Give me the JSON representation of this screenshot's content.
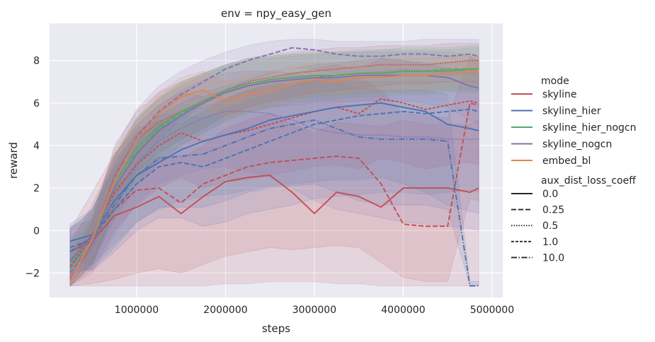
{
  "chart_data": {
    "type": "line",
    "title": "env = npy_easy_gen",
    "xlabel": "steps",
    "ylabel": "reward",
    "xlim": [
      20000,
      5120000
    ],
    "ylim": [
      -3.15,
      9.75
    ],
    "x_ticks": [
      1000000,
      2000000,
      3000000,
      4000000,
      5000000
    ],
    "x_tick_labels": [
      "1000000",
      "2000000",
      "3000000",
      "4000000",
      "5000000"
    ],
    "y_ticks": [
      -2,
      0,
      2,
      4,
      6,
      8
    ],
    "y_tick_labels": [
      "−2",
      "0",
      "2",
      "4",
      "6",
      "8"
    ],
    "grid": true,
    "background": "#eaeaf2",
    "legend_placement": "right, outside plot",
    "legend": {
      "hue_title": "mode",
      "hue_entries": [
        {
          "label": "skyline",
          "color": "#c44e52"
        },
        {
          "label": "skyline_hier",
          "color": "#4c72b0"
        },
        {
          "label": "skyline_hier_nogcn",
          "color": "#55a868"
        },
        {
          "label": "skyline_nogcn",
          "color": "#8172b3"
        },
        {
          "label": "embed_bl",
          "color": "#dd8452"
        }
      ],
      "style_title": "aux_dist_loss_coeff",
      "style_entries": [
        {
          "label": "0.0",
          "dash": "solid"
        },
        {
          "label": "0.25",
          "dash": "dashed"
        },
        {
          "label": "0.5",
          "dash": "dotted"
        },
        {
          "label": "1.0",
          "dash": "densely-dashed"
        },
        {
          "label": "10.0",
          "dash": "dashdot"
        }
      ]
    },
    "x": [
      250000,
      500000,
      750000,
      1000000,
      1250000,
      1500000,
      1750000,
      2000000,
      2250000,
      2500000,
      2750000,
      3000000,
      3250000,
      3500000,
      3750000,
      4000000,
      4250000,
      4500000,
      4750000,
      4850000
    ],
    "series": [
      {
        "color": "#c44e52",
        "dash": "solid",
        "values": [
          -1.0,
          -0.5,
          0.7,
          1.1,
          1.6,
          0.8,
          1.6,
          2.3,
          2.5,
          2.6,
          1.8,
          0.8,
          1.8,
          1.6,
          1.1,
          2.0,
          2.0,
          2.0,
          1.8,
          2.0
        ],
        "lower": [
          -2.6,
          -2.6,
          -2.6,
          -2.6,
          -2.6,
          -2.6,
          -2.6,
          -2.5,
          -2.5,
          -2.4,
          -2.4,
          -2.4,
          -2.5,
          -2.5,
          -2.6,
          -2.6,
          -2.6,
          -2.6,
          -2.6,
          -2.6
        ],
        "upper": [
          0.2,
          0.5,
          2.0,
          3.0,
          3.5,
          3.4,
          4.0,
          4.8,
          5.2,
          5.5,
          5.0,
          4.6,
          5.1,
          5.0,
          4.9,
          5.2,
          5.0,
          5.0,
          5.0,
          5.2
        ]
      },
      {
        "color": "#c44e52",
        "dash": "dashed",
        "values": [
          -1.5,
          -0.2,
          1.0,
          1.9,
          2.0,
          1.3,
          2.2,
          2.6,
          3.0,
          3.2,
          3.3,
          3.4,
          3.5,
          3.4,
          2.2,
          0.3,
          0.2,
          0.2,
          6.0,
          5.9
        ],
        "lower": [
          -2.6,
          -2.5,
          -2.3,
          -2.0,
          -1.8,
          -2.0,
          -1.6,
          -1.2,
          -1.0,
          -0.8,
          -0.9,
          -0.8,
          -0.7,
          -0.8,
          -1.5,
          -2.2,
          -2.4,
          -2.4,
          1.5,
          1.4
        ],
        "upper": [
          0.0,
          1.8,
          3.6,
          4.8,
          5.2,
          5.0,
          5.6,
          6.2,
          6.6,
          6.8,
          6.9,
          7.0,
          7.2,
          7.2,
          6.6,
          5.5,
          5.4,
          5.3,
          8.2,
          8.0
        ]
      },
      {
        "color": "#c44e52",
        "dash": "dotted",
        "values": [
          -2.3,
          -0.6,
          2.6,
          4.3,
          5.1,
          5.6,
          6.0,
          6.6,
          7.0,
          7.2,
          7.4,
          7.5,
          7.6,
          7.7,
          7.8,
          7.8,
          7.8,
          7.9,
          8.0,
          8.0
        ],
        "lower": [
          -2.6,
          -1.6,
          1.0,
          2.8,
          3.7,
          4.3,
          4.8,
          5.4,
          5.8,
          6.1,
          6.3,
          6.5,
          6.6,
          6.7,
          6.8,
          6.9,
          6.9,
          7.0,
          7.0,
          7.0
        ],
        "upper": [
          -1.8,
          0.4,
          4.0,
          5.6,
          6.5,
          7.0,
          7.4,
          7.8,
          8.1,
          8.3,
          8.4,
          8.5,
          8.6,
          8.6,
          8.7,
          8.7,
          8.7,
          8.8,
          8.8,
          8.8
        ]
      },
      {
        "color": "#c44e52",
        "dash": "densely-dashed",
        "values": [
          -1.7,
          -0.3,
          1.8,
          3.1,
          4.0,
          4.6,
          4.2,
          4.5,
          4.7,
          5.0,
          5.3,
          5.6,
          5.8,
          5.5,
          6.2,
          6.0,
          5.7,
          5.9,
          6.1,
          6.0
        ],
        "lower": [
          -2.6,
          -1.8,
          0.0,
          1.2,
          2.0,
          2.5,
          2.0,
          2.3,
          2.4,
          2.6,
          2.8,
          3.0,
          3.1,
          2.9,
          3.4,
          3.2,
          2.9,
          3.1,
          3.2,
          3.1
        ],
        "upper": [
          -0.6,
          1.2,
          3.5,
          5.0,
          5.9,
          6.5,
          6.3,
          6.6,
          6.9,
          7.1,
          7.4,
          7.6,
          7.8,
          7.6,
          8.1,
          8.0,
          7.8,
          7.9,
          8.0,
          8.0
        ]
      },
      {
        "color": "#4c72b0",
        "dash": "solid",
        "values": [
          -0.5,
          -0.2,
          1.4,
          2.6,
          3.2,
          3.8,
          4.2,
          4.5,
          4.8,
          5.2,
          5.4,
          5.6,
          5.8,
          5.9,
          6.0,
          5.8,
          5.6,
          5.0,
          4.8,
          4.7
        ],
        "lower": [
          -1.4,
          -1.6,
          -0.6,
          0.4,
          1.0,
          1.4,
          1.6,
          1.7,
          1.9,
          2.1,
          2.2,
          2.3,
          2.4,
          2.4,
          2.5,
          2.2,
          1.8,
          1.2,
          0.9,
          0.8
        ],
        "upper": [
          0.3,
          1.0,
          3.2,
          4.6,
          5.4,
          6.0,
          6.5,
          6.8,
          7.1,
          7.4,
          7.6,
          7.8,
          7.9,
          8.0,
          8.1,
          8.0,
          7.9,
          7.6,
          7.5,
          7.4
        ]
      },
      {
        "color": "#4c72b0",
        "dash": "dashed",
        "values": [
          -0.8,
          -0.4,
          1.0,
          2.2,
          3.0,
          3.2,
          3.0,
          3.4,
          3.8,
          4.2,
          4.6,
          5.0,
          5.2,
          5.4,
          5.5,
          5.6,
          5.5,
          5.6,
          5.7,
          5.6
        ],
        "lower": [
          -1.7,
          -1.9,
          -1.0,
          0.0,
          0.6,
          0.6,
          0.2,
          0.4,
          0.8,
          1.0,
          1.2,
          1.5,
          1.6,
          1.7,
          1.8,
          1.8,
          1.7,
          1.8,
          1.9,
          1.8
        ],
        "upper": [
          0.1,
          0.9,
          2.9,
          4.2,
          5.0,
          5.4,
          5.3,
          5.7,
          6.1,
          6.4,
          6.8,
          7.1,
          7.3,
          7.4,
          7.5,
          7.6,
          7.5,
          7.6,
          7.6,
          7.5
        ]
      },
      {
        "color": "#4c72b0",
        "dash": "dashdot",
        "values": [
          -1.0,
          -0.3,
          1.2,
          2.6,
          3.4,
          3.5,
          3.6,
          4.0,
          4.4,
          4.8,
          5.0,
          5.2,
          4.8,
          4.4,
          4.3,
          4.3,
          4.3,
          4.2,
          -2.6,
          -2.6
        ],
        "lower": [
          -2.0,
          -1.8,
          -0.8,
          0.4,
          1.1,
          1.1,
          1.1,
          1.4,
          1.8,
          2.0,
          2.1,
          2.2,
          1.8,
          1.4,
          1.2,
          1.2,
          1.2,
          1.0,
          -2.6,
          -2.6
        ],
        "upper": [
          0.0,
          1.0,
          3.0,
          4.6,
          5.4,
          5.6,
          5.8,
          6.2,
          6.6,
          6.9,
          7.1,
          7.2,
          7.0,
          6.7,
          6.6,
          6.6,
          6.6,
          6.4,
          -2.4,
          -2.4
        ]
      },
      {
        "color": "#55a868",
        "dash": "solid",
        "values": [
          -1.5,
          -0.3,
          2.2,
          3.9,
          4.9,
          5.6,
          6.1,
          6.6,
          6.9,
          7.1,
          7.2,
          7.3,
          7.3,
          7.4,
          7.4,
          7.5,
          7.5,
          7.5,
          7.6,
          7.6
        ],
        "lower": [
          -2.4,
          -1.4,
          0.8,
          2.5,
          3.6,
          4.3,
          4.8,
          5.4,
          5.8,
          6.0,
          6.2,
          6.3,
          6.4,
          6.4,
          6.5,
          6.5,
          6.5,
          6.6,
          6.6,
          6.6
        ],
        "upper": [
          -0.6,
          0.8,
          3.6,
          5.3,
          6.2,
          6.9,
          7.4,
          7.8,
          8.0,
          8.2,
          8.3,
          8.3,
          8.4,
          8.4,
          8.5,
          8.5,
          8.5,
          8.5,
          8.6,
          8.6
        ]
      },
      {
        "color": "#55a868",
        "dash": "dashed",
        "values": [
          -1.8,
          -0.5,
          2.0,
          3.7,
          4.8,
          5.5,
          6.0,
          6.5,
          6.8,
          7.0,
          7.1,
          7.2,
          7.3,
          7.4,
          7.4,
          7.5,
          7.5,
          7.6,
          7.6,
          7.6
        ],
        "lower": [
          -2.6,
          -1.6,
          0.6,
          2.2,
          3.3,
          4.0,
          4.6,
          5.1,
          5.5,
          5.8,
          6.0,
          6.1,
          6.2,
          6.3,
          6.3,
          6.4,
          6.4,
          6.5,
          6.5,
          6.5
        ],
        "upper": [
          -0.9,
          0.6,
          3.4,
          5.2,
          6.3,
          7.0,
          7.4,
          7.8,
          8.1,
          8.2,
          8.3,
          8.4,
          8.4,
          8.5,
          8.5,
          8.6,
          8.6,
          8.6,
          8.7,
          8.7
        ]
      },
      {
        "color": "#8172b3",
        "dash": "solid",
        "values": [
          -1.4,
          -0.3,
          2.0,
          3.6,
          4.7,
          5.4,
          6.0,
          6.5,
          6.8,
          7.0,
          7.1,
          7.2,
          7.2,
          7.3,
          7.3,
          7.3,
          7.3,
          7.2,
          6.8,
          6.7
        ],
        "lower": [
          -2.4,
          -1.5,
          0.5,
          2.0,
          3.2,
          4.0,
          4.6,
          5.2,
          5.6,
          5.8,
          5.9,
          6.0,
          6.0,
          6.1,
          6.1,
          6.1,
          6.0,
          5.8,
          5.2,
          5.0
        ],
        "upper": [
          -0.4,
          0.9,
          3.5,
          5.2,
          6.2,
          6.8,
          7.3,
          7.7,
          8.0,
          8.1,
          8.2,
          8.3,
          8.3,
          8.4,
          8.4,
          8.4,
          8.4,
          8.4,
          8.3,
          8.2
        ]
      },
      {
        "color": "#8172b3",
        "dash": "dashed",
        "values": [
          -2.0,
          -0.6,
          2.4,
          4.4,
          5.6,
          6.4,
          7.0,
          7.6,
          8.0,
          8.3,
          8.6,
          8.5,
          8.3,
          8.2,
          8.2,
          8.3,
          8.3,
          8.2,
          8.3,
          8.2
        ],
        "lower": [
          -2.6,
          -1.6,
          1.0,
          3.0,
          4.3,
          5.2,
          5.9,
          6.6,
          7.0,
          7.4,
          7.7,
          7.6,
          7.4,
          7.3,
          7.3,
          7.4,
          7.4,
          7.3,
          7.4,
          7.3
        ],
        "upper": [
          -1.2,
          0.5,
          3.8,
          5.7,
          6.8,
          7.5,
          8.0,
          8.4,
          8.7,
          8.9,
          9.0,
          9.0,
          8.9,
          8.9,
          8.9,
          8.9,
          9.0,
          9.0,
          9.0,
          9.0
        ]
      },
      {
        "color": "#8172b3",
        "dash": "dotted",
        "values": [
          -2.2,
          -0.8,
          1.6,
          3.2,
          4.2,
          4.8,
          5.3,
          5.6,
          5.6,
          5.5,
          5.2,
          4.8,
          4.6,
          4.5,
          4.5,
          4.4,
          4.4,
          4.3,
          4.3,
          4.3
        ],
        "lower": [
          -2.6,
          -2.0,
          -0.2,
          1.3,
          2.2,
          2.6,
          2.9,
          3.0,
          2.8,
          2.5,
          2.0,
          1.4,
          1.0,
          0.8,
          0.6,
          0.4,
          0.3,
          0.2,
          0.1,
          0.0
        ],
        "upper": [
          -1.6,
          0.4,
          3.2,
          4.9,
          5.9,
          6.6,
          7.1,
          7.4,
          7.5,
          7.5,
          7.4,
          7.2,
          7.1,
          7.0,
          7.0,
          7.0,
          7.0,
          7.0,
          7.0,
          7.0
        ]
      },
      {
        "color": "#dd8452",
        "dash": "solid",
        "values": [
          -2.4,
          -0.4,
          2.3,
          4.3,
          5.5,
          6.3,
          6.6,
          6.1,
          6.4,
          6.6,
          6.9,
          7.1,
          7.0,
          7.2,
          7.2,
          7.3,
          7.3,
          7.4,
          7.5,
          7.5
        ],
        "lower": [
          -2.6,
          -1.2,
          1.2,
          3.3,
          4.6,
          5.5,
          5.9,
          5.3,
          5.6,
          5.9,
          6.2,
          6.4,
          6.3,
          6.5,
          6.5,
          6.6,
          6.6,
          6.7,
          6.8,
          6.8
        ],
        "upper": [
          -2.1,
          0.6,
          3.4,
          5.3,
          6.5,
          7.2,
          7.5,
          7.0,
          7.3,
          7.5,
          7.7,
          7.9,
          7.8,
          8.0,
          8.0,
          8.1,
          8.1,
          8.2,
          8.2,
          8.2
        ]
      }
    ]
  }
}
